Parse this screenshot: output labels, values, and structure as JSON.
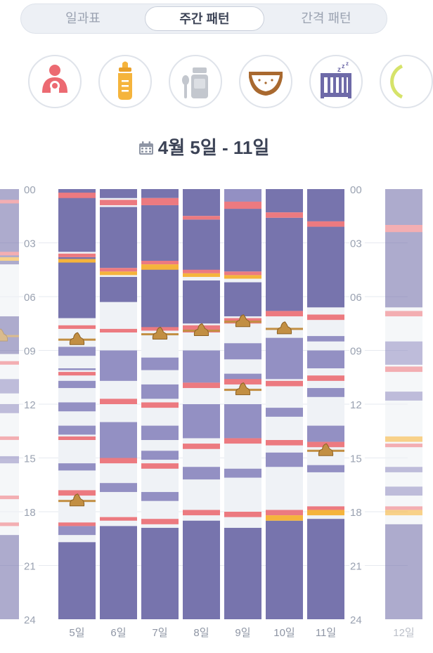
{
  "tabs": [
    {
      "label": "일과표",
      "active": false
    },
    {
      "label": "주간 패턴",
      "active": true
    },
    {
      "label": "간격 패턴",
      "active": false
    }
  ],
  "filters": [
    {
      "icon": "breastfeeding-icon",
      "color": "#ec6a72"
    },
    {
      "icon": "baby-bottle-icon",
      "color": "#f5b43c"
    },
    {
      "icon": "baby-food-icon",
      "color": "#c3c7ce"
    },
    {
      "icon": "diaper-icon",
      "color": "#a9692f"
    },
    {
      "icon": "crib-sleep-icon",
      "color": "#6e6aa8"
    },
    {
      "icon": "growth-icon",
      "color": "#d6e36a"
    }
  ],
  "date_range": "4월 5일 - 11일",
  "chart_data": {
    "type": "timeline",
    "y_ticks": [
      "00",
      "03",
      "06",
      "09",
      "12",
      "15",
      "18",
      "21",
      "24"
    ],
    "ylim": [
      0,
      24
    ],
    "colors": {
      "sleep_night": "#7774ad",
      "sleep_day": "#9390c3",
      "awake": "#eff2f6",
      "breast": "#ec7a80",
      "bottle": "#f5b43c",
      "poop": "#c28f43"
    },
    "days": [
      {
        "label": "",
        "partial": "left",
        "night_sleep": [
          [
            0,
            4.2
          ],
          [
            7.1,
            9.2
          ],
          [
            19.3,
            24
          ]
        ],
        "day_sleep": [
          [
            10.6,
            11.4
          ],
          [
            12.0,
            12.5
          ],
          [
            14.9,
            15.3
          ]
        ],
        "breast": [
          [
            0.6,
            0.8
          ],
          [
            3.5,
            3.7
          ],
          [
            9.6,
            9.7
          ],
          [
            13.8,
            13.9
          ],
          [
            17.1,
            17.3
          ],
          [
            18.6,
            18.8
          ]
        ],
        "bottle": [
          [
            3.8,
            4.0
          ]
        ],
        "poop": [
          8.2
        ]
      },
      {
        "label": "5일",
        "night_sleep": [
          [
            0,
            3.5
          ],
          [
            3.8,
            7.2
          ],
          [
            19.7,
            24
          ]
        ],
        "day_sleep": [
          [
            8.8,
            9.3
          ],
          [
            10.0,
            10.1
          ],
          [
            10.7,
            11.1
          ],
          [
            11.9,
            12.4
          ],
          [
            13.2,
            13.7
          ],
          [
            15.3,
            15.7
          ],
          [
            18.8,
            19.3
          ]
        ],
        "breast": [
          [
            0.2,
            0.5
          ],
          [
            3.6,
            3.8
          ],
          [
            7.6,
            7.8
          ],
          [
            10.2,
            10.4
          ],
          [
            13.8,
            14.0
          ],
          [
            16.8,
            17.1
          ],
          [
            18.6,
            18.8
          ]
        ],
        "bottle": [
          [
            3.9,
            4.1
          ]
        ],
        "poop": [
          8.4,
          17.4
        ]
      },
      {
        "label": "6일",
        "night_sleep": [
          [
            0,
            0.5
          ],
          [
            1.0,
            4.4
          ],
          [
            4.9,
            6.3
          ],
          [
            18.8,
            24
          ]
        ],
        "day_sleep": [
          [
            9.0,
            10.7
          ],
          [
            13.0,
            15.0
          ],
          [
            16.4,
            16.9
          ]
        ],
        "breast": [
          [
            0.6,
            0.9
          ],
          [
            4.4,
            4.6
          ],
          [
            7.8,
            8.0
          ],
          [
            11.7,
            12.0
          ],
          [
            15.0,
            15.3
          ],
          [
            18.3,
            18.5
          ]
        ],
        "bottle": [
          [
            4.6,
            4.8
          ]
        ],
        "poop": []
      },
      {
        "label": "7일",
        "night_sleep": [
          [
            0,
            0.5
          ],
          [
            0.9,
            4.0
          ],
          [
            4.4,
            7.8
          ],
          [
            18.9,
            24
          ]
        ],
        "day_sleep": [
          [
            9.4,
            10.1
          ],
          [
            10.9,
            11.7
          ],
          [
            13.2,
            14.0
          ],
          [
            14.6,
            15.1
          ],
          [
            16.9,
            17.4
          ]
        ],
        "breast": [
          [
            0.5,
            0.9
          ],
          [
            4.0,
            4.2
          ],
          [
            7.7,
            7.9
          ],
          [
            11.9,
            12.2
          ],
          [
            15.3,
            15.6
          ],
          [
            18.4,
            18.7
          ]
        ],
        "bottle": [
          [
            4.2,
            4.5
          ]
        ],
        "poop": [
          8.1
        ]
      },
      {
        "label": "8일",
        "night_sleep": [
          [
            0,
            1.5
          ],
          [
            1.7,
            4.6
          ],
          [
            5.1,
            7.5
          ],
          [
            18.5,
            24
          ]
        ],
        "day_sleep": [
          [
            9.0,
            10.8
          ],
          [
            12.0,
            13.9
          ],
          [
            15.5,
            16.2
          ]
        ],
        "breast": [
          [
            1.5,
            1.7
          ],
          [
            4.5,
            4.7
          ],
          [
            7.6,
            8.0
          ],
          [
            10.8,
            11.1
          ],
          [
            14.2,
            14.5
          ],
          [
            17.9,
            18.2
          ]
        ],
        "bottle": [
          [
            4.7,
            4.9
          ]
        ],
        "poop": [
          7.9
        ]
      },
      {
        "label": "9일",
        "night_sleep": [
          [
            0,
            0.7
          ],
          [
            1.1,
            4.6
          ],
          [
            5.2,
            7.1
          ],
          [
            18.9,
            24
          ]
        ],
        "day_sleep": [
          [
            0,
            0.7
          ],
          [
            8.6,
            9.5
          ],
          [
            10.3,
            10.7
          ],
          [
            12.0,
            13.9
          ],
          [
            15.6,
            16.1
          ]
        ],
        "breast": [
          [
            0.7,
            1.1
          ],
          [
            4.6,
            4.8
          ],
          [
            7.2,
            7.5
          ],
          [
            10.6,
            10.9
          ],
          [
            13.9,
            14.2
          ],
          [
            18.0,
            18.3
          ]
        ],
        "bottle": [
          [
            4.8,
            5.0
          ]
        ],
        "poop": [
          7.4,
          11.2
        ]
      },
      {
        "label": "10일",
        "night_sleep": [
          [
            0,
            1.3
          ],
          [
            1.6,
            6.8
          ],
          [
            18.5,
            24
          ]
        ],
        "day_sleep": [
          [
            8.3,
            10.6
          ],
          [
            12.2,
            12.7
          ],
          [
            14.7,
            15.5
          ]
        ],
        "breast": [
          [
            1.3,
            1.6
          ],
          [
            6.8,
            7.1
          ],
          [
            10.7,
            11.0
          ],
          [
            14.0,
            14.3
          ],
          [
            17.9,
            18.2
          ]
        ],
        "bottle": [
          [
            18.2,
            18.5
          ]
        ],
        "poop": [
          7.8
        ]
      },
      {
        "label": "11일",
        "night_sleep": [
          [
            0,
            1.8
          ],
          [
            2.1,
            6.6
          ],
          [
            18.4,
            24
          ]
        ],
        "day_sleep": [
          [
            8.2,
            8.5
          ],
          [
            9.0,
            10.0
          ],
          [
            11.1,
            11.6
          ],
          [
            13.2,
            14.1
          ],
          [
            15.4,
            15.8
          ]
        ],
        "breast": [
          [
            1.8,
            2.1
          ],
          [
            7.0,
            7.3
          ],
          [
            10.4,
            10.7
          ],
          [
            14.1,
            14.4
          ],
          [
            17.7,
            17.9
          ]
        ],
        "bottle": [
          [
            17.9,
            18.2
          ]
        ],
        "poop": [
          14.6
        ]
      },
      {
        "label": "12일",
        "partial": "right",
        "night_sleep": [
          [
            0,
            6.6
          ],
          [
            18.7,
            24
          ]
        ],
        "day_sleep": [
          [
            8.5,
            9.8
          ],
          [
            11.3,
            11.8
          ],
          [
            15.5,
            15.8
          ],
          [
            16.6,
            17.1
          ]
        ],
        "breast": [
          [
            2.0,
            2.4
          ],
          [
            6.8,
            7.1
          ],
          [
            9.9,
            10.2
          ],
          [
            14.2,
            14.4
          ],
          [
            17.7,
            17.9
          ]
        ],
        "bottle": [
          [
            13.8,
            14.1
          ],
          [
            17.9,
            18.2
          ]
        ],
        "poop": []
      }
    ]
  }
}
